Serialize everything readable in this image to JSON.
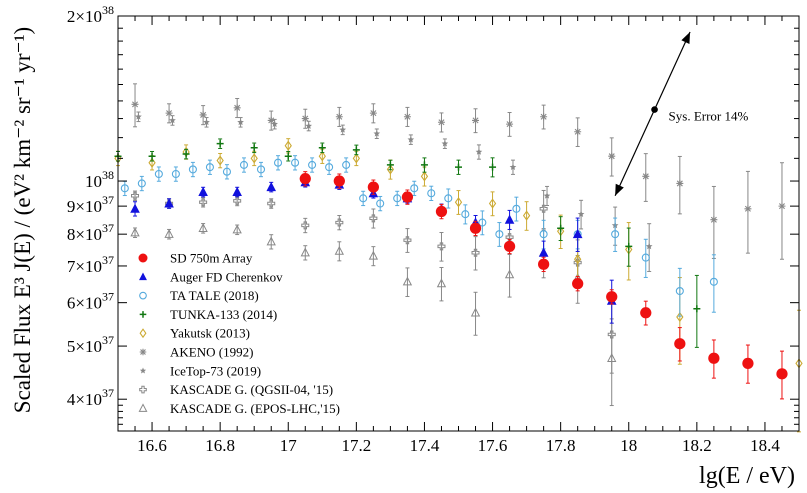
{
  "chart_data": {
    "type": "scatter",
    "xlabel": "lg(E / eV)",
    "ylabel": "Scaled Flux  E³ J(E) / (eV² km⁻² sr⁻¹ yr⁻¹)",
    "xlim": [
      16.5,
      18.5
    ],
    "ylim": [
      3.5e+37,
      2e+38
    ],
    "yscale": "log",
    "x_ticks": [
      16.6,
      16.8,
      17.0,
      17.2,
      17.4,
      17.6,
      17.8,
      18.0,
      18.2,
      18.4
    ],
    "x_tick_labels": [
      "16.6",
      "16.8",
      "17",
      "17.2",
      "17.4",
      "17.6",
      "17.8",
      "18",
      "18.2",
      "18.4"
    ],
    "y_ticks": [
      {
        "value": 2e+38,
        "mantissa": "2",
        "exp": "38"
      },
      {
        "value": 1e+38,
        "mantissa": "",
        "exp": "38"
      },
      {
        "value": 9e+37,
        "mantissa": "9",
        "exp": "37"
      },
      {
        "value": 8e+37,
        "mantissa": "8",
        "exp": "37"
      },
      {
        "value": 7e+37,
        "mantissa": "7",
        "exp": "37"
      },
      {
        "value": 6e+37,
        "mantissa": "6",
        "exp": "37"
      },
      {
        "value": 5e+37,
        "mantissa": "5",
        "exp": "37"
      },
      {
        "value": 4e+37,
        "mantissa": "4",
        "exp": "37"
      }
    ],
    "legend_position": "bottom-left",
    "annotation": {
      "text": "Sys. Error 14%",
      "x1": 17.96,
      "y1": 9.4e+37,
      "x2": 18.18,
      "y2": 1.87e+38,
      "dot_y": 1.35e+38
    },
    "series": [
      {
        "name": "SD 750m Array",
        "marker": "circle-filled",
        "color": "#ee1111",
        "points": [
          [
            17.05,
            1.01e+38,
            0.03
          ],
          [
            17.15,
            1e+38,
            0.03
          ],
          [
            17.25,
            9.75e+37,
            0.03
          ],
          [
            17.35,
            9.35e+37,
            0.03
          ],
          [
            17.45,
            8.8e+37,
            0.03
          ],
          [
            17.55,
            8.2e+37,
            0.03
          ],
          [
            17.65,
            7.6e+37,
            0.03
          ],
          [
            17.75,
            7.05e+37,
            0.03
          ],
          [
            17.85,
            6.5e+37,
            0.03
          ],
          [
            17.95,
            6.15e+37,
            0.03
          ],
          [
            18.05,
            5.75e+37,
            0.05
          ],
          [
            18.15,
            5.05e+37,
            0.07
          ],
          [
            18.25,
            4.75e+37,
            0.08
          ],
          [
            18.35,
            4.65e+37,
            0.08
          ],
          [
            18.45,
            4.45e+37,
            0.1
          ]
        ]
      },
      {
        "name": "Auger FD Cherenkov",
        "marker": "triangle-filled",
        "color": "#1111dd",
        "points": [
          [
            16.55,
            8.9e+37,
            0.03
          ],
          [
            16.65,
            9.1e+37,
            0.02
          ],
          [
            16.75,
            9.55e+37,
            0.02
          ],
          [
            16.85,
            9.55e+37,
            0.02
          ],
          [
            16.95,
            9.75e+37,
            0.02
          ],
          [
            17.05,
            9.95e+37,
            0.02
          ],
          [
            17.15,
            9.85e+37,
            0.02
          ],
          [
            17.25,
            9.5e+37,
            0.02
          ],
          [
            17.35,
            9.3e+37,
            0.02
          ],
          [
            17.45,
            8.9e+37,
            0.02
          ],
          [
            17.55,
            8.4e+37,
            0.03
          ],
          [
            17.65,
            8.5e+37,
            0.04
          ],
          [
            17.75,
            7.4e+37,
            0.05
          ],
          [
            17.85,
            8e+37,
            0.07
          ],
          [
            17.95,
            6.05e+37,
            0.09
          ]
        ]
      },
      {
        "name": "TA TALE (2018)",
        "marker": "circle-open",
        "color": "#55aadd",
        "points": [
          [
            16.52,
            9.7e+37,
            0.03
          ],
          [
            16.57,
            9.9e+37,
            0.03
          ],
          [
            16.62,
            1.03e+38,
            0.03
          ],
          [
            16.67,
            1.03e+38,
            0.03
          ],
          [
            16.72,
            1.05e+38,
            0.03
          ],
          [
            16.77,
            1.06e+38,
            0.03
          ],
          [
            16.82,
            1.04e+38,
            0.03
          ],
          [
            16.87,
            1.07e+38,
            0.03
          ],
          [
            16.92,
            1.05e+38,
            0.03
          ],
          [
            16.97,
            1.08e+38,
            0.03
          ],
          [
            17.02,
            1.08e+38,
            0.03
          ],
          [
            17.07,
            1.07e+38,
            0.03
          ],
          [
            17.12,
            1.06e+38,
            0.03
          ],
          [
            17.17,
            1.07e+38,
            0.03
          ],
          [
            17.22,
            9.3e+37,
            0.03
          ],
          [
            17.27,
            9.1e+37,
            0.03
          ],
          [
            17.32,
            9.3e+37,
            0.03
          ],
          [
            17.37,
            9.7e+37,
            0.03
          ],
          [
            17.42,
            9.5e+37,
            0.03
          ],
          [
            17.47,
            9.3e+37,
            0.04
          ],
          [
            17.52,
            8.7e+37,
            0.04
          ],
          [
            17.57,
            8.4e+37,
            0.05
          ],
          [
            17.62,
            8e+37,
            0.05
          ],
          [
            17.67,
            8.9e+37,
            0.05
          ],
          [
            17.75,
            8e+37,
            0.06
          ],
          [
            17.85,
            8e+37,
            0.06
          ],
          [
            17.96,
            8e+37,
            0.07
          ],
          [
            18.05,
            7.25e+37,
            0.08
          ],
          [
            18.15,
            6.3e+37,
            0.1
          ],
          [
            18.25,
            6.55e+37,
            0.12
          ]
        ]
      },
      {
        "name": "TUNKA-133 (2014)",
        "marker": "plus",
        "color": "#117711",
        "points": [
          [
            16.5,
            1.11e+38,
            0.02
          ],
          [
            16.6,
            1.11e+38,
            0.02
          ],
          [
            16.7,
            1.12e+38,
            0.02
          ],
          [
            16.8,
            1.17e+38,
            0.02
          ],
          [
            16.9,
            1.15e+38,
            0.02
          ],
          [
            17.0,
            1.11e+38,
            0.02
          ],
          [
            17.1,
            1.15e+38,
            0.02
          ],
          [
            17.2,
            1.14e+38,
            0.02
          ],
          [
            17.3,
            1.07e+38,
            0.02
          ],
          [
            17.4,
            1.07e+38,
            0.03
          ],
          [
            17.5,
            1.06e+38,
            0.03
          ],
          [
            17.6,
            1.06e+38,
            0.04
          ],
          [
            17.8,
            8.2e+37,
            0.05
          ],
          [
            18.0,
            7.6e+37,
            0.08
          ],
          [
            18.2,
            5.85e+37,
            0.15
          ]
        ]
      },
      {
        "name": "Yakutsk (2013)",
        "marker": "diamond-open",
        "color": "#ccaa33",
        "points": [
          [
            16.5,
            1.1e+38,
            0.03
          ],
          [
            16.6,
            1.08e+38,
            0.03
          ],
          [
            16.7,
            1.13e+38,
            0.03
          ],
          [
            16.8,
            1.09e+38,
            0.03
          ],
          [
            16.9,
            1.1e+38,
            0.03
          ],
          [
            17.0,
            1.16e+38,
            0.03
          ],
          [
            17.1,
            1.11e+38,
            0.03
          ],
          [
            17.2,
            1.1e+38,
            0.03
          ],
          [
            17.3,
            1.05e+38,
            0.04
          ],
          [
            17.4,
            1.02e+38,
            0.04
          ],
          [
            17.5,
            9.15e+37,
            0.05
          ],
          [
            17.6,
            9.1e+37,
            0.05
          ],
          [
            17.7,
            8.65e+37,
            0.06
          ],
          [
            17.8,
            8.1e+37,
            0.07
          ],
          [
            17.85,
            7.2e+37,
            0.1
          ],
          [
            18.0,
            7.5e+37,
            0.12
          ],
          [
            18.15,
            5.65e+37,
            0.18
          ],
          [
            18.5,
            4.65e+37,
            0.25
          ]
        ]
      },
      {
        "name": "AKENO (1992)",
        "marker": "asterisk",
        "color": "#888888",
        "points": [
          [
            16.55,
            1.38e+38,
            0.09
          ],
          [
            16.65,
            1.33e+38,
            0.04
          ],
          [
            16.75,
            1.32e+38,
            0.04
          ],
          [
            16.85,
            1.36e+38,
            0.04
          ],
          [
            16.95,
            1.29e+38,
            0.04
          ],
          [
            17.05,
            1.3e+38,
            0.04
          ],
          [
            17.15,
            1.31e+38,
            0.04
          ],
          [
            17.25,
            1.33e+38,
            0.04
          ],
          [
            17.35,
            1.31e+38,
            0.04
          ],
          [
            17.45,
            1.28e+38,
            0.04
          ],
          [
            17.55,
            1.29e+38,
            0.05
          ],
          [
            17.65,
            1.27e+38,
            0.05
          ],
          [
            17.75,
            1.31e+38,
            0.05
          ],
          [
            17.85,
            1.23e+38,
            0.06
          ],
          [
            17.95,
            1.11e+38,
            0.08
          ],
          [
            18.05,
            1.02e+38,
            0.1
          ],
          [
            18.15,
            9.9e+37,
            0.12
          ],
          [
            18.25,
            8.5e+37,
            0.15
          ],
          [
            18.35,
            8.9e+37,
            0.17
          ],
          [
            18.45,
            9e+37,
            0.2
          ]
        ]
      },
      {
        "name": "IceTop-73 (2019)",
        "marker": "star",
        "color": "#888888",
        "points": [
          [
            16.56,
            1.31e+38,
            0.02
          ],
          [
            16.66,
            1.29e+38,
            0.02
          ],
          [
            16.76,
            1.28e+38,
            0.02
          ],
          [
            16.86,
            1.28e+38,
            0.02
          ],
          [
            16.96,
            1.27e+38,
            0.02
          ],
          [
            17.06,
            1.26e+38,
            0.02
          ],
          [
            17.16,
            1.24e+38,
            0.02
          ],
          [
            17.26,
            1.22e+38,
            0.02
          ],
          [
            17.36,
            1.19e+38,
            0.02
          ],
          [
            17.46,
            1.17e+38,
            0.02
          ],
          [
            17.56,
            1.13e+38,
            0.03
          ],
          [
            17.66,
            1.06e+38,
            0.03
          ],
          [
            17.76,
            9.4e+37,
            0.04
          ],
          [
            17.86,
            8.7e+37,
            0.06
          ],
          [
            17.96,
            8.3e+37,
            0.08
          ],
          [
            18.06,
            7.6e+37,
            0.1
          ]
        ]
      },
      {
        "name": "KASCADE G. (QGSII-04, '15)",
        "marker": "cross-open",
        "color": "#888888",
        "points": [
          [
            16.55,
            9.4e+37,
            0.02
          ],
          [
            16.65,
            9.1e+37,
            0.02
          ],
          [
            16.75,
            9.15e+37,
            0.02
          ],
          [
            16.85,
            9.2e+37,
            0.02
          ],
          [
            16.95,
            9.1e+37,
            0.02
          ],
          [
            17.05,
            8.3e+37,
            0.03
          ],
          [
            17.15,
            8.4e+37,
            0.03
          ],
          [
            17.25,
            8.55e+37,
            0.04
          ],
          [
            17.35,
            7.8e+37,
            0.05
          ],
          [
            17.45,
            7.6e+37,
            0.06
          ],
          [
            17.55,
            7.4e+37,
            0.07
          ],
          [
            17.65,
            7.9e+37,
            0.07
          ],
          [
            17.75,
            8.9e+37,
            0.08
          ],
          [
            17.85,
            7.1e+37,
            0.1
          ],
          [
            17.95,
            5.25e+37,
            0.15
          ]
        ]
      },
      {
        "name": "KASCADE G. (EPOS-LHC,'15)",
        "marker": "triangle-open",
        "color": "#888888",
        "points": [
          [
            16.55,
            8.05e+37,
            0.02
          ],
          [
            16.65,
            8e+37,
            0.02
          ],
          [
            16.75,
            8.2e+37,
            0.02
          ],
          [
            16.85,
            8.15e+37,
            0.02
          ],
          [
            16.95,
            7.75e+37,
            0.03
          ],
          [
            17.05,
            7.4e+37,
            0.03
          ],
          [
            17.15,
            7.45e+37,
            0.04
          ],
          [
            17.25,
            7.3e+37,
            0.04
          ],
          [
            17.35,
            6.55e+37,
            0.06
          ],
          [
            17.45,
            6.5e+37,
            0.07
          ],
          [
            17.55,
            5.75e+37,
            0.09
          ],
          [
            17.65,
            6.75e+37,
            0.09
          ],
          [
            17.75,
            7.4e+37,
            0.1
          ],
          [
            17.85,
            6.65e+37,
            0.1
          ],
          [
            17.95,
            4.75e+37,
            0.18
          ]
        ]
      }
    ]
  }
}
